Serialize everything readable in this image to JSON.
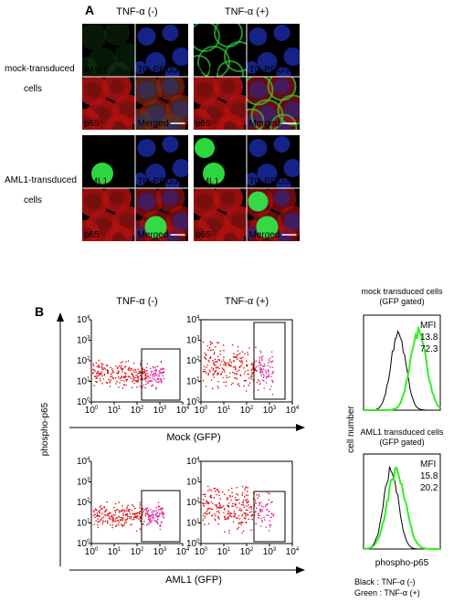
{
  "panel_a": {
    "label": "A",
    "columns": [
      "TNF-α (-)",
      "TNF-α (+)"
    ],
    "rows": [
      {
        "label_lines": [
          "mock-transduced",
          "cells"
        ]
      },
      {
        "label_lines": [
          "AML1-transduced",
          "cells"
        ]
      }
    ],
    "channels": [
      "AML1",
      "TO-PRO3",
      "p65",
      "Merged"
    ]
  },
  "panel_b": {
    "label": "B",
    "columns": [
      "TNF-α (-)",
      "TNF-α (+)"
    ],
    "y_label": "phospho-p65",
    "x_labels": [
      "Mock (GFP)",
      "AML1  (GFP)"
    ],
    "tick_base": "10",
    "tick_exponents": [
      "0",
      "1",
      "2",
      "3",
      "4"
    ],
    "histograms": [
      {
        "title_lines": [
          "mock transduced cells",
          "(GFP gated)"
        ],
        "mfi_label": "MFI",
        "mfi": [
          13.8,
          72.3
        ]
      },
      {
        "title_lines": [
          "AML1 transduced cells",
          "(GFP gated)"
        ],
        "mfi_label": "MFI",
        "mfi": [
          15.8,
          20.2
        ]
      }
    ],
    "hist_y_label": "cell number",
    "hist_x_label": "phospho-p65",
    "legend": [
      "Black : TNF-α (-)",
      "Green : TNF-α (+)"
    ]
  }
}
